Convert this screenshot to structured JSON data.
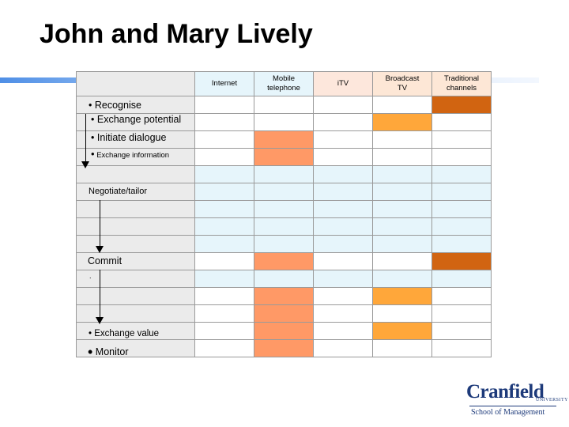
{
  "title": "John and Mary Lively",
  "columns": {
    "internet": "Internet",
    "mobile_line1": "Mobile",
    "mobile_line2": "telephone",
    "itv": "iTV",
    "broadcast_line1": "Broadcast",
    "broadcast_line2": "TV",
    "traditional_line1": "Traditional",
    "traditional_line2": "channels"
  },
  "stages": {
    "recognise": "Recognise",
    "exchange_potential": "Exchange potential",
    "initiate_dialogue": "Initiate dialogue",
    "exchange_information": "Exchange information",
    "negotiate": "Negotiate/tailor",
    "commit": "Commit",
    "dot": ".",
    "exchange_value": "Exchange value",
    "monitor": "Monitor"
  },
  "bullet": "•",
  "colors": {
    "light_cyan": "#e6f5fb",
    "salmon": "#ff9966",
    "amber": "#ffa73a",
    "dark_orange": "#d16411",
    "stage_grey": "#ebebeb"
  },
  "logo": {
    "name": "Cranfield",
    "university": "UNIVERSITY",
    "school": "School of Management"
  }
}
